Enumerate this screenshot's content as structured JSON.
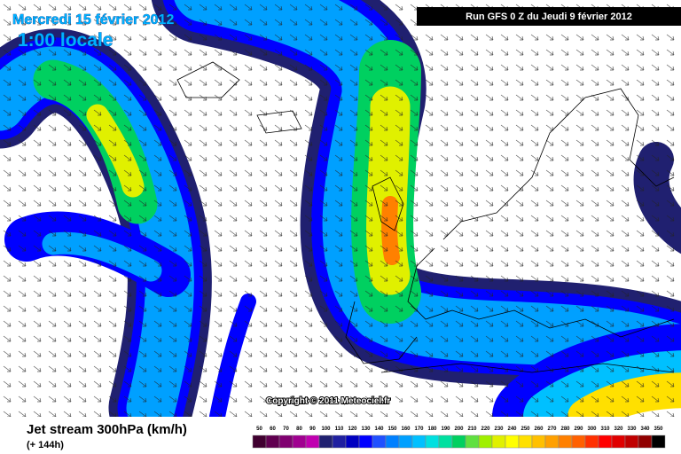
{
  "header": {
    "date": "Mercredi 15 février 2012",
    "time": "1:00 locale",
    "run": "Run GFS 0 Z du Jeudi 9 février 2012"
  },
  "copyright": "Copyright © 2011 Meteociel.fr",
  "footer": {
    "title": "Jet stream 300hPa (km/h)",
    "lead": "(+ 144h)"
  },
  "scale": {
    "labels": [
      50,
      60,
      70,
      80,
      90,
      100,
      110,
      120,
      130,
      140,
      150,
      160,
      170,
      180,
      190,
      200,
      210,
      220,
      230,
      240,
      250,
      260,
      270,
      280,
      290,
      300,
      310,
      320,
      330,
      340,
      350
    ],
    "colors": [
      "#400030",
      "#600050",
      "#800070",
      "#a00090",
      "#c000b0",
      "#202070",
      "#2020a0",
      "#0000c0",
      "#0000ff",
      "#2050ff",
      "#0080ff",
      "#00a0ff",
      "#00c0ff",
      "#00e0e0",
      "#00e0a0",
      "#00d060",
      "#60e040",
      "#a0f000",
      "#e0f000",
      "#ffff00",
      "#ffe000",
      "#ffc000",
      "#ffa000",
      "#ff8000",
      "#ff6000",
      "#ff3000",
      "#ff0000",
      "#e00000",
      "#c00000",
      "#900000",
      "#000000"
    ]
  }
}
